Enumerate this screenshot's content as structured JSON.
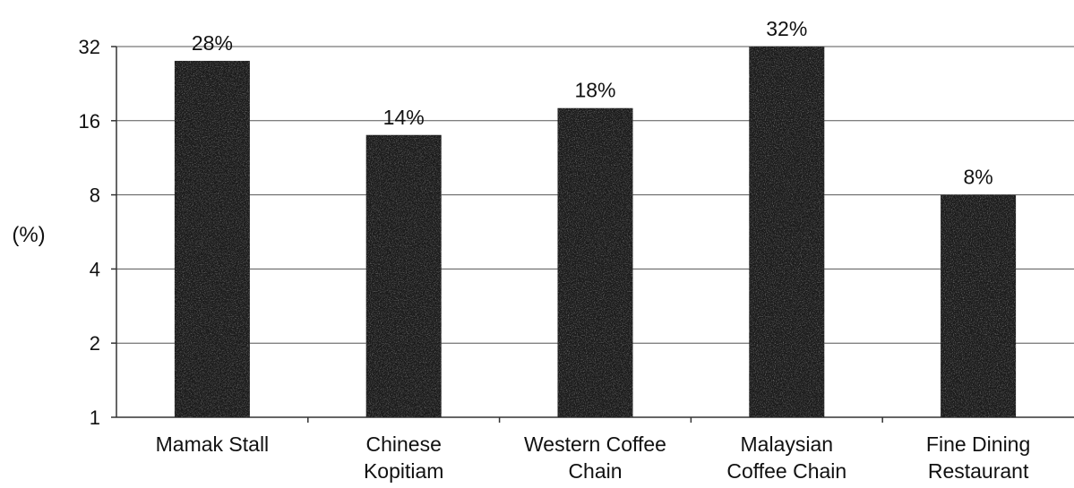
{
  "chart_data": {
    "type": "bar",
    "title": "",
    "xlabel": "",
    "ylabel": "(%)",
    "scale": "log2",
    "ylim": [
      1,
      32
    ],
    "y_ticks": [
      "32",
      "16",
      "8",
      "4",
      "2",
      "1"
    ],
    "y_tick_values": [
      32,
      16,
      8,
      4,
      2,
      1
    ],
    "grid": true,
    "legend": "none",
    "categories": [
      [
        "Mamak Stall"
      ],
      [
        "Chinese",
        "Kopitiam"
      ],
      [
        "Western Coffee",
        "Chain"
      ],
      [
        "Malaysian",
        "Coffee Chain"
      ],
      [
        "Fine Dining",
        "Restaurant"
      ]
    ],
    "values": [
      28,
      14,
      18,
      32,
      8
    ],
    "data_labels": [
      "28%",
      "14%",
      "18%",
      "32%",
      "8%"
    ],
    "bar_color": "#1c1c1c"
  }
}
